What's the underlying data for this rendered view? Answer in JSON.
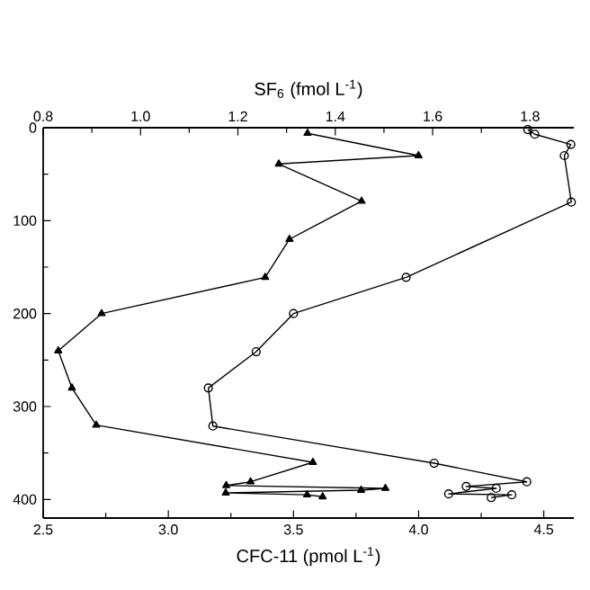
{
  "chart_data": {
    "type": "line",
    "xlabel": "CFC-11 (pmol L$^{-1}$)",
    "x2label": "SF$_{6}$ (fmol L$^{-1}$)",
    "xlim": [
      2.5,
      4.62
    ],
    "xticks": [
      2.5,
      {
        "value": 3,
        "label": "3.0"
      },
      3.5,
      {
        "value": 4,
        "label": "4.0"
      },
      4.5
    ],
    "x2lim": [
      0.8,
      1.89
    ],
    "x2ticks": [
      0.8,
      {
        "value": 1,
        "label": "1.0"
      },
      1.2,
      1.4,
      1.6,
      1.8
    ],
    "ylim": [
      420,
      0
    ],
    "yticks": [
      0,
      100,
      200,
      300,
      400
    ],
    "line_style": "solid",
    "series": [
      {
        "color": "#000000",
        "marker": "circle",
        "x": [
          4.436,
          4.464,
          4.608,
          4.582,
          4.61,
          3.95,
          3.5,
          3.351,
          3.16,
          3.178,
          4.062,
          4.432,
          4.19,
          4.31,
          4.12,
          4.372,
          4.29
        ],
        "values": [
          2,
          7,
          18,
          30,
          80,
          161,
          200,
          241,
          280,
          321,
          361,
          381,
          386,
          388,
          394,
          395,
          398
        ]
      },
      {
        "color": "#000000",
        "marker": "triangle",
        "axis": "x2",
        "x": [
          1.343,
          1.571,
          1.284,
          1.454,
          1.306,
          1.256,
          0.92,
          0.831,
          0.859,
          0.909,
          1.354,
          1.226,
          1.176,
          1.503,
          1.453,
          1.175,
          1.342,
          1.374
        ],
        "values": [
          6,
          30,
          39,
          79,
          120,
          161,
          200,
          240,
          280,
          320,
          360,
          381,
          385,
          388,
          390,
          393,
          395,
          397
        ]
      }
    ]
  }
}
